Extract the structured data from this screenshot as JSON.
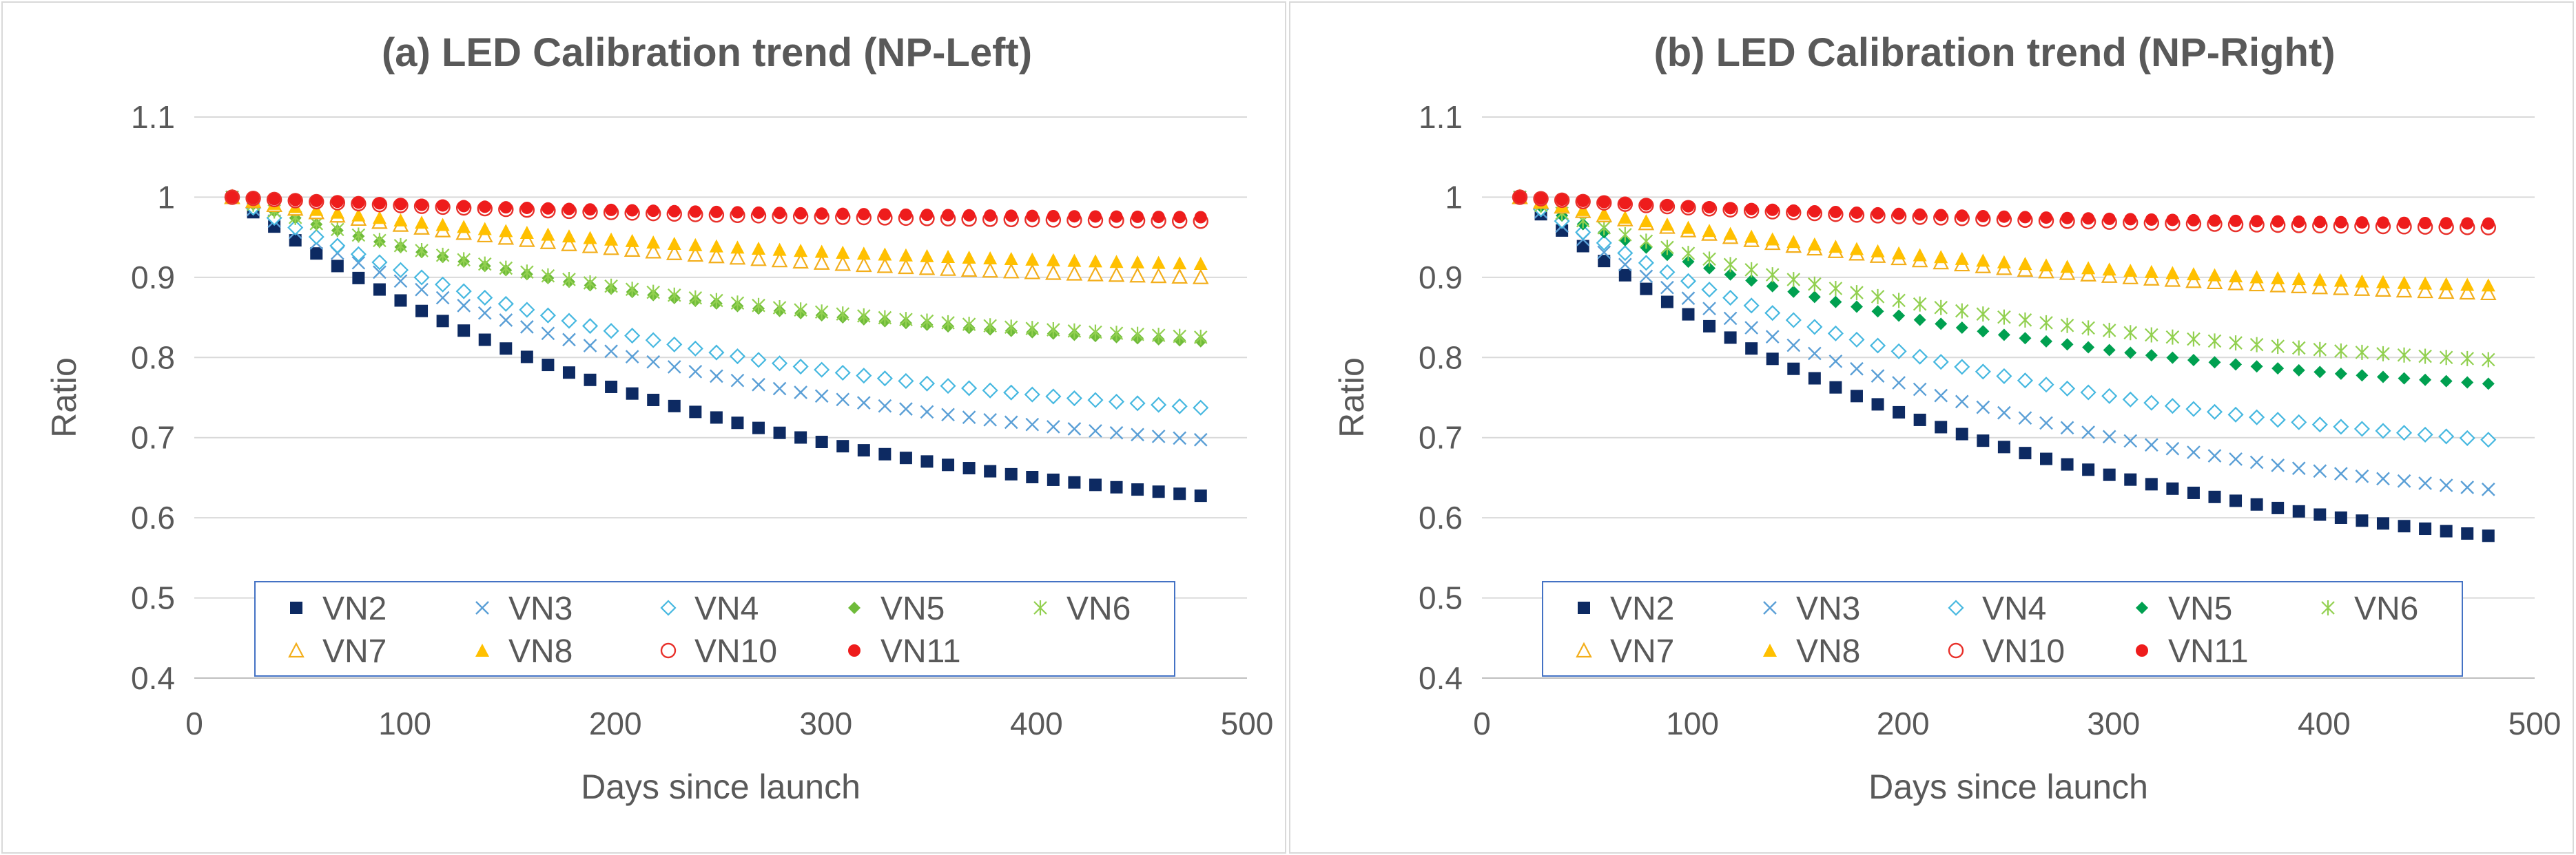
{
  "chart_data": [
    {
      "type": "scatter",
      "title": "(a) LED Calibration trend (NP-Left)",
      "xlabel": "Days since launch",
      "ylabel": "Ratio",
      "xlim": [
        0,
        500
      ],
      "ylim": [
        0.4,
        1.1
      ],
      "xticks": [
        0,
        100,
        200,
        300,
        400,
        500
      ],
      "yticks": [
        0.4,
        0.5,
        0.6,
        0.7,
        0.8,
        0.9,
        1,
        1.1
      ],
      "xtick_labels": [
        "0",
        "100",
        "200",
        "300",
        "400",
        "500"
      ],
      "ytick_labels": [
        "0.4",
        "0.5",
        "0.6",
        "0.7",
        "0.8",
        "0.9",
        "1",
        "1.1"
      ],
      "grid": "horizontal",
      "legend_position": "bottom-inside",
      "x_range": [
        18,
        480
      ],
      "x_step": 10,
      "series": [
        {
          "name": "VN2",
          "marker": "square",
          "color": "#0d2a62",
          "start": 1.0,
          "end": 0.627
        },
        {
          "name": "VN3",
          "marker": "x",
          "color": "#5a9fd6",
          "start": 1.0,
          "end": 0.697
        },
        {
          "name": "VN4",
          "marker": "diamond-open",
          "color": "#46b8e0",
          "start": 1.0,
          "end": 0.737
        },
        {
          "name": "VN5",
          "marker": "diamond",
          "color": "#6fbb3a",
          "start": 1.0,
          "end": 0.82
        },
        {
          "name": "VN6",
          "marker": "asterisk",
          "color": "#92d050",
          "start": 1.0,
          "end": 0.825
        },
        {
          "name": "VN7",
          "marker": "triangle-open",
          "color": "#f3ae1b",
          "start": 1.0,
          "end": 0.9
        },
        {
          "name": "VN8",
          "marker": "triangle",
          "color": "#ffc000",
          "start": 1.0,
          "end": 0.917
        },
        {
          "name": "VN10",
          "marker": "circle-open",
          "color": "#e8302a",
          "start": 1.0,
          "end": 0.97
        },
        {
          "name": "VN11",
          "marker": "circle",
          "color": "#ee1c1c",
          "start": 1.0,
          "end": 0.975
        }
      ]
    },
    {
      "type": "scatter",
      "title": "(b) LED Calibration trend (NP-Right)",
      "xlabel": "Days since launch",
      "ylabel": "Ratio",
      "xlim": [
        0,
        500
      ],
      "ylim": [
        0.4,
        1.1
      ],
      "xticks": [
        0,
        100,
        200,
        300,
        400,
        500
      ],
      "yticks": [
        0.4,
        0.5,
        0.6,
        0.7,
        0.8,
        0.9,
        1,
        1.1
      ],
      "xtick_labels": [
        "0",
        "100",
        "200",
        "300",
        "400",
        "500"
      ],
      "ytick_labels": [
        "0.4",
        "0.5",
        "0.6",
        "0.7",
        "0.8",
        "0.9",
        "1",
        "1.1"
      ],
      "grid": "horizontal",
      "legend_position": "bottom-inside",
      "x_range": [
        18,
        480
      ],
      "x_step": 10,
      "series": [
        {
          "name": "VN2",
          "marker": "square",
          "color": "#0d2a62",
          "start": 1.0,
          "end": 0.577
        },
        {
          "name": "VN3",
          "marker": "x",
          "color": "#5a9fd6",
          "start": 1.0,
          "end": 0.635
        },
        {
          "name": "VN4",
          "marker": "diamond-open",
          "color": "#46b8e0",
          "start": 1.0,
          "end": 0.697
        },
        {
          "name": "VN5",
          "marker": "diamond",
          "color": "#00a050",
          "start": 1.0,
          "end": 0.767
        },
        {
          "name": "VN6",
          "marker": "asterisk",
          "color": "#92d050",
          "start": 1.0,
          "end": 0.797
        },
        {
          "name": "VN7",
          "marker": "triangle-open",
          "color": "#f3ae1b",
          "start": 1.0,
          "end": 0.88
        },
        {
          "name": "VN8",
          "marker": "triangle",
          "color": "#ffc000",
          "start": 1.0,
          "end": 0.89
        },
        {
          "name": "VN10",
          "marker": "circle-open",
          "color": "#e8302a",
          "start": 1.0,
          "end": 0.962
        },
        {
          "name": "VN11",
          "marker": "circle",
          "color": "#ee1c1c",
          "start": 1.0,
          "end": 0.967
        }
      ]
    }
  ]
}
